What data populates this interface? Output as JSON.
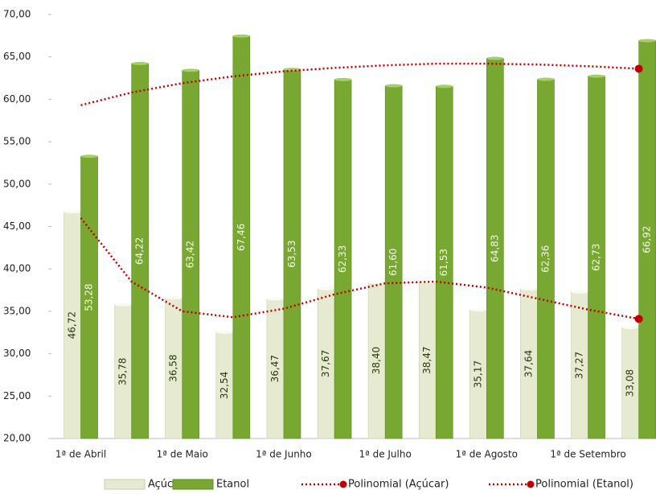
{
  "chart_data": {
    "type": "bar",
    "categories": [
      "1ª de Abril",
      null,
      "1ª de Maio",
      null,
      "1ª de Junho",
      null,
      "1ª de Julho",
      null,
      "1ª de Agosto",
      null,
      "1ª de Setembro",
      null
    ],
    "series": [
      {
        "name": "Açúcar",
        "color": "#e6ead0",
        "values": [
          46.72,
          35.78,
          36.58,
          32.54,
          36.47,
          37.67,
          38.4,
          38.47,
          35.17,
          37.64,
          37.27,
          33.08
        ],
        "value_labels": [
          "46,72",
          "35,78",
          "36,58",
          "32,54",
          "36,47",
          "37,67",
          "38,40",
          "38,47",
          "35,17",
          "37,64",
          "37,27",
          "33,08"
        ]
      },
      {
        "name": "Etanol",
        "color": "#78a832",
        "values": [
          53.28,
          64.22,
          63.42,
          67.46,
          63.53,
          62.33,
          61.6,
          61.53,
          64.83,
          62.36,
          62.73,
          66.92
        ],
        "value_labels": [
          "53,28",
          "64,22",
          "63,42",
          "67,46",
          "63,53",
          "62,33",
          "61,60",
          "61,53",
          "64,83",
          "62,36",
          "62,73",
          "66,92"
        ]
      },
      {
        "name": "Polinomial (Açúcar)",
        "type": "line",
        "color": "#c00000",
        "values": [
          46.0,
          38.5,
          35.0,
          34.3,
          35.3,
          37.0,
          38.3,
          38.5,
          37.8,
          36.5,
          35.2,
          34.1
        ]
      },
      {
        "name": "Polinomial (Etanol)",
        "type": "line",
        "color": "#c00000",
        "values": [
          59.3,
          60.8,
          61.9,
          62.7,
          63.3,
          63.7,
          64.0,
          64.2,
          64.2,
          64.1,
          63.9,
          63.6
        ]
      }
    ],
    "ylim": [
      20,
      70
    ],
    "yticks": [
      {
        "value": 20,
        "label": "20,00"
      },
      {
        "value": 25,
        "label": "25,00"
      },
      {
        "value": 30,
        "label": "30,00"
      },
      {
        "value": 35,
        "label": "35,00"
      },
      {
        "value": 40,
        "label": "40,00"
      },
      {
        "value": 45,
        "label": "45,00"
      },
      {
        "value": 50,
        "label": "50,00"
      },
      {
        "value": 55,
        "label": "55,00"
      },
      {
        "value": 60,
        "label": "60,00"
      },
      {
        "value": 65,
        "label": "65,00"
      },
      {
        "value": 70,
        "label": "70,00"
      }
    ],
    "legend": "bottom"
  }
}
